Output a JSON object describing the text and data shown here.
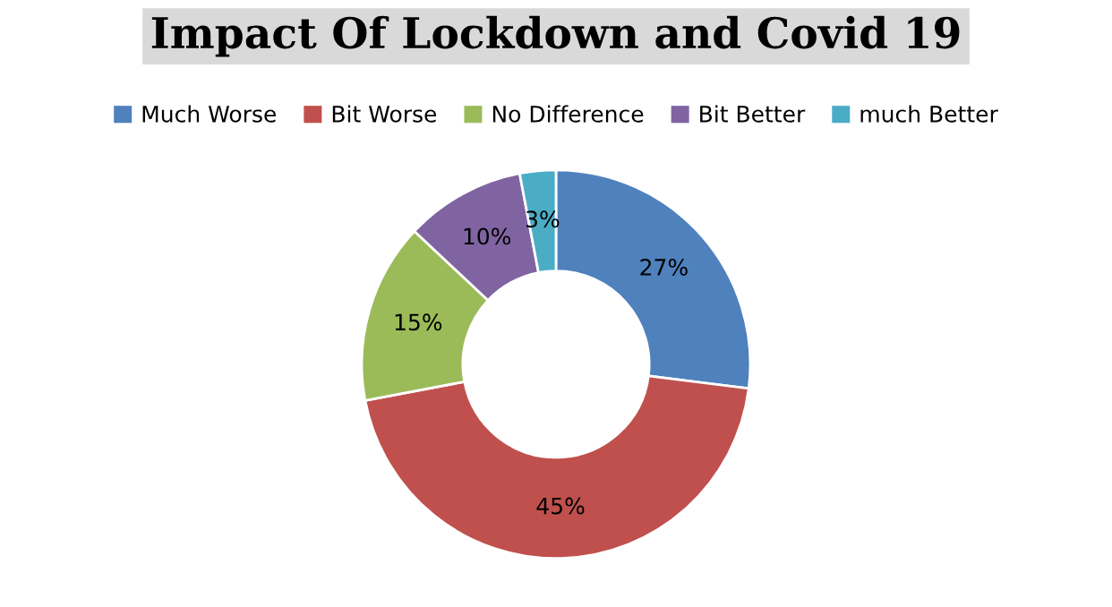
{
  "chart_data": {
    "type": "donut",
    "title": "Impact Of Lockdown and Covid 19",
    "categories": [
      "Much Worse",
      "Bit Worse",
      "No Difference",
      "Bit Better",
      "much Better"
    ],
    "values": [
      27,
      45,
      15,
      10,
      3
    ],
    "colors": [
      "#4f81bd",
      "#c0504d",
      "#9bbb59",
      "#8064a2",
      "#4bacc6"
    ],
    "value_labels": [
      "27%",
      "45%",
      "15%",
      "10%",
      "3%"
    ],
    "legend": "top"
  }
}
